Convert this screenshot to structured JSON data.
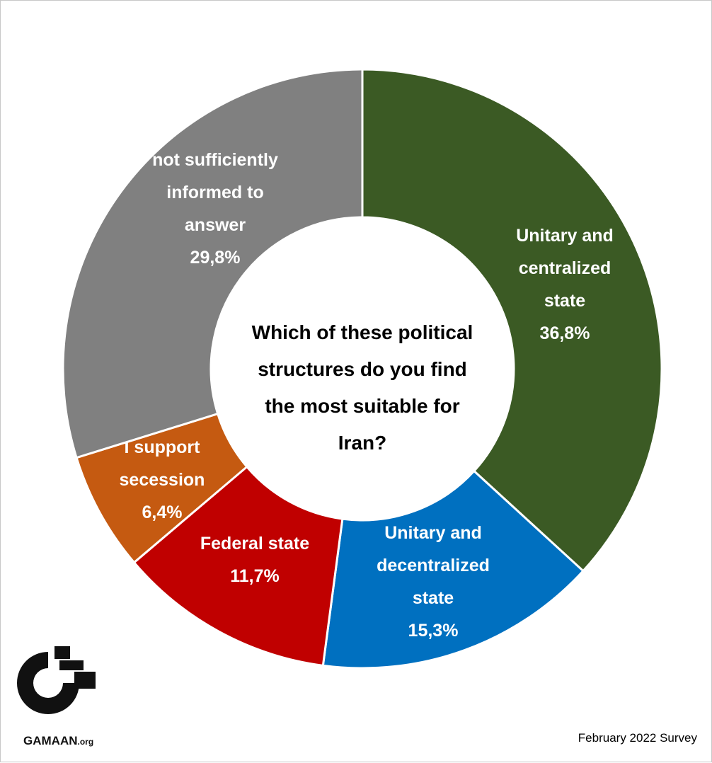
{
  "chart_data": {
    "type": "pie",
    "title": "Which of these political structures do you find the most suitable for Iran?",
    "title_lines": [
      "Which of these political",
      "structures do you find",
      "the most suitable for",
      "Iran?"
    ],
    "slices": [
      {
        "name": "Unitary and centralized state",
        "label_lines": [
          "Unitary and",
          "centralized",
          "state"
        ],
        "value": 36.8,
        "value_label": "36,8%",
        "color": "#3b5a24"
      },
      {
        "name": "Unitary and decentralized state",
        "label_lines": [
          "Unitary and",
          "decentralized",
          "state"
        ],
        "value": 15.3,
        "value_label": "15,3%",
        "color": "#0070c0"
      },
      {
        "name": "Federal state",
        "label_lines": [
          "Federal state"
        ],
        "value": 11.7,
        "value_label": "11,7%",
        "color": "#c00000"
      },
      {
        "name": "I support secession",
        "label_lines": [
          "I support",
          "secession"
        ],
        "value": 6.4,
        "value_label": "6,4%",
        "color": "#c55a11"
      },
      {
        "name": "not sufficiently informed to answer",
        "label_lines": [
          "not sufficiently",
          "informed to",
          "answer"
        ],
        "value": 29.8,
        "value_label": "29,8%",
        "color": "#808080"
      }
    ],
    "donut": true,
    "legend": "none"
  },
  "footer": {
    "survey": "February 2022 Survey",
    "brand": "GAMAAN",
    "brand_suffix": ".org"
  }
}
